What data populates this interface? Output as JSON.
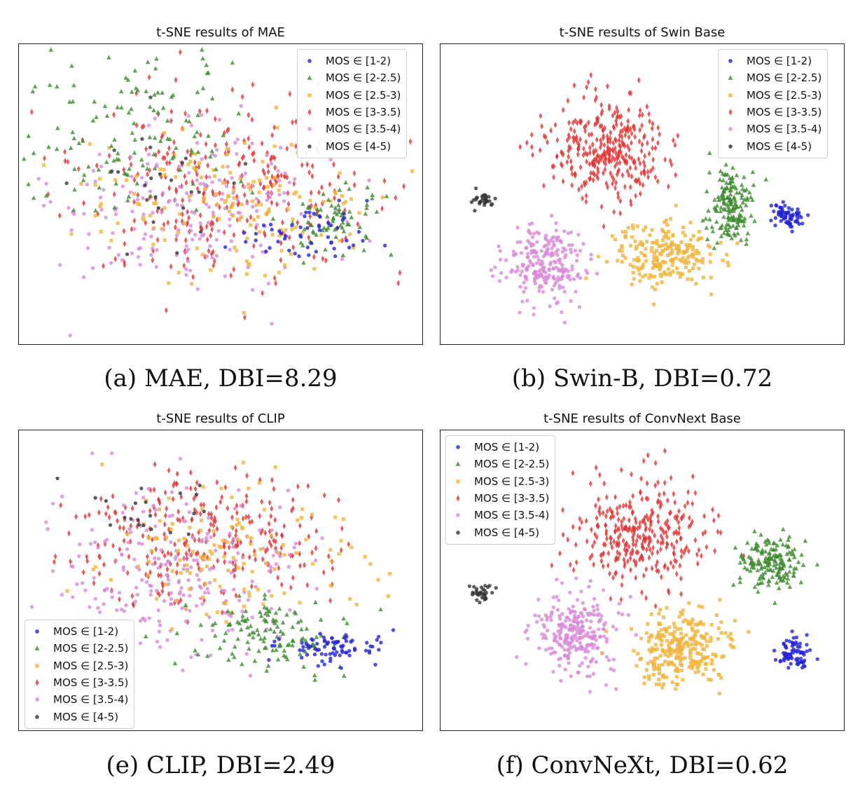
{
  "colors": {
    "mos_1_2": "#2323d6",
    "mos_2_25": "#3c8a2e",
    "mos_25_3": "#f0b43c",
    "mos_3_35": "#e03535",
    "mos_35_4": "#d88ad8",
    "mos_4_5": "#333333"
  },
  "legend_labels": [
    "MOS ∈ [1-2)",
    "MOS ∈ [2-2.5)",
    "MOS ∈ [2.5-3)",
    "MOS ∈ [3-3.5)",
    "MOS ∈ [3.5-4)",
    "MOS ∈ [4-5)"
  ],
  "chart_data": [
    {
      "id": "mae",
      "type": "scatter",
      "title": "t-SNE results of MAE",
      "caption": "(a) MAE, DBI=8.29",
      "legend_placement": "top-right",
      "xlabel": "",
      "ylabel": "",
      "grid": false
    },
    {
      "id": "swin",
      "type": "scatter",
      "title": "t-SNE results of Swin Base",
      "caption": "(b) Swin-B, DBI=0.72",
      "legend_placement": "top-right",
      "xlabel": "",
      "ylabel": "",
      "grid": false
    },
    {
      "id": "clip",
      "type": "scatter",
      "title": "t-SNE results of CLIP",
      "caption": "(e) CLIP, DBI=2.49",
      "legend_placement": "bottom-left",
      "xlabel": "",
      "ylabel": "",
      "grid": false
    },
    {
      "id": "convnext",
      "type": "scatter",
      "title": "t-SNE results of ConvNext Base",
      "caption": "(f) ConvNeXt, DBI=0.62",
      "legend_placement": "top-left",
      "xlabel": "",
      "ylabel": "",
      "grid": false
    }
  ]
}
